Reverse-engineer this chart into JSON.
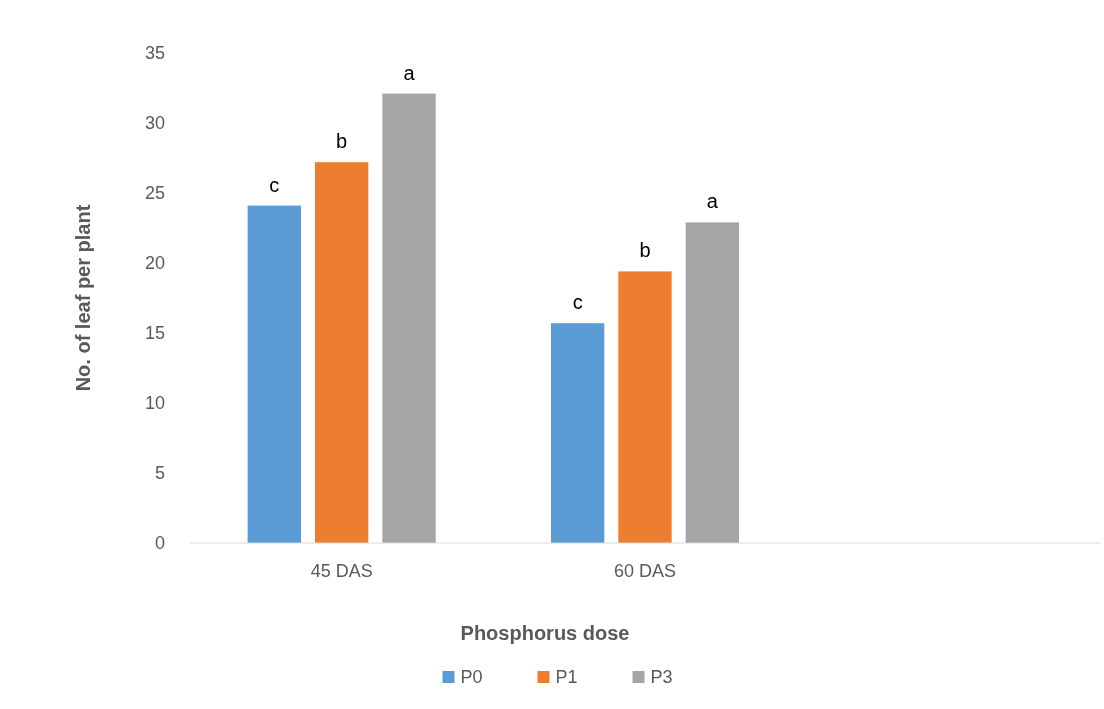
{
  "chart_data": {
    "type": "bar",
    "xlabel": "Phosphorus dose",
    "ylabel": "No. of leaf per plant",
    "categories": [
      "45 DAS",
      "60 DAS",
      null
    ],
    "series": [
      {
        "name": "P0",
        "color": "#5b9bd5",
        "values": [
          24.1,
          15.7,
          null
        ],
        "value_labels": [
          "c",
          "c",
          null
        ]
      },
      {
        "name": "P1",
        "color": "#ed7d31",
        "values": [
          27.2,
          19.4,
          null
        ],
        "value_labels": [
          "b",
          "b",
          null
        ]
      },
      {
        "name": "P3",
        "color": "#a5a5a5",
        "values": [
          32.1,
          22.9,
          null
        ],
        "value_labels": [
          "a",
          "a",
          null
        ]
      }
    ],
    "ylim": [
      0,
      35
    ],
    "yticks": [
      0,
      5,
      10,
      15,
      20,
      25,
      30,
      35
    ],
    "grid": false,
    "legend": "bottom"
  }
}
